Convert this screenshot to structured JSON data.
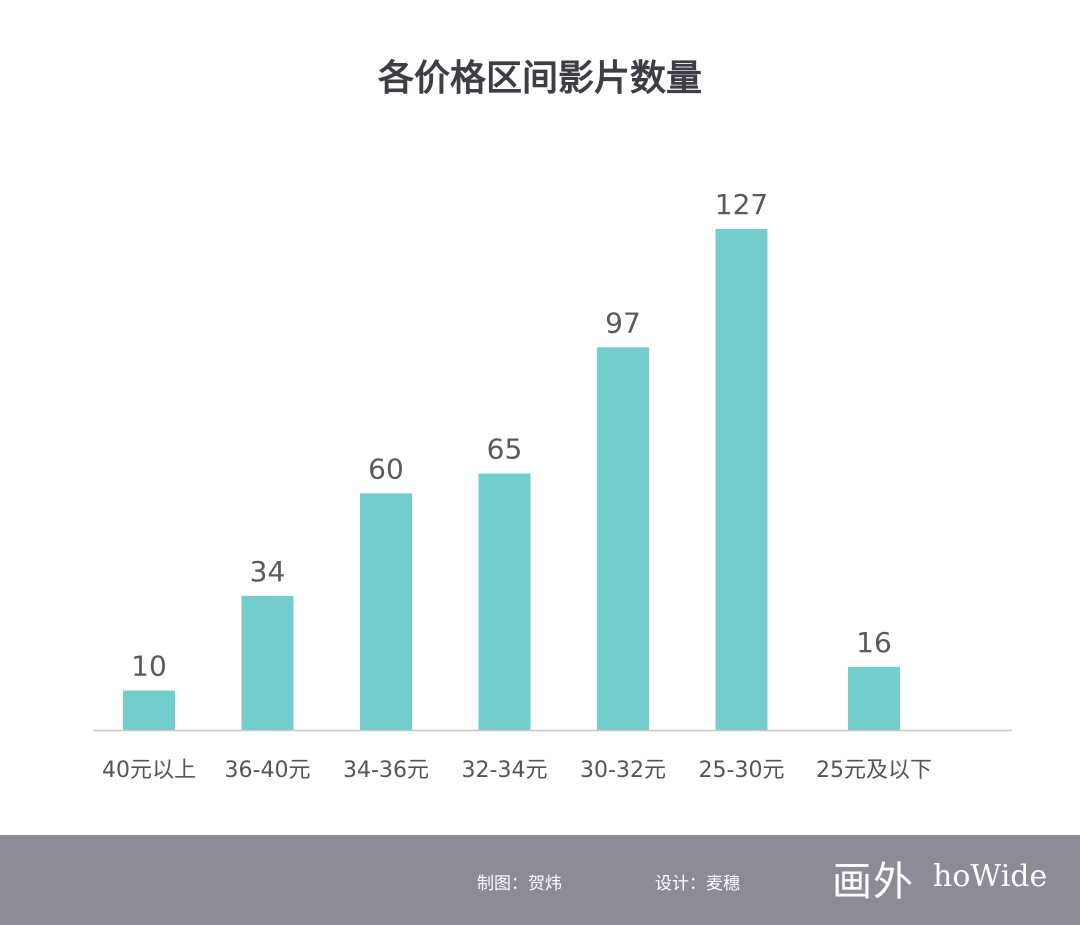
{
  "chart_data": {
    "type": "bar",
    "title": "各价格区间影片数量",
    "categories": [
      "40元以上",
      "36-40元",
      "34-36元",
      "32-34元",
      "30-32元",
      "25-30元",
      "25元及以下"
    ],
    "values": [
      10,
      34,
      60,
      65,
      97,
      127,
      16
    ],
    "value_labels": [
      "10",
      "34",
      "60",
      "65",
      "97",
      "127",
      "16"
    ],
    "xlabel": "",
    "ylabel": "",
    "ylim": [
      0,
      127
    ],
    "grid": false,
    "legend": "none",
    "bar_color": "#74cdcd",
    "axis_color": "#c8c8c8"
  },
  "footer": {
    "background": "#8c8b96",
    "credit_chart": "制图：贺炜",
    "credit_design": "设计：麦穗",
    "logo_cn": "画外",
    "logo_en": "hoWide"
  }
}
